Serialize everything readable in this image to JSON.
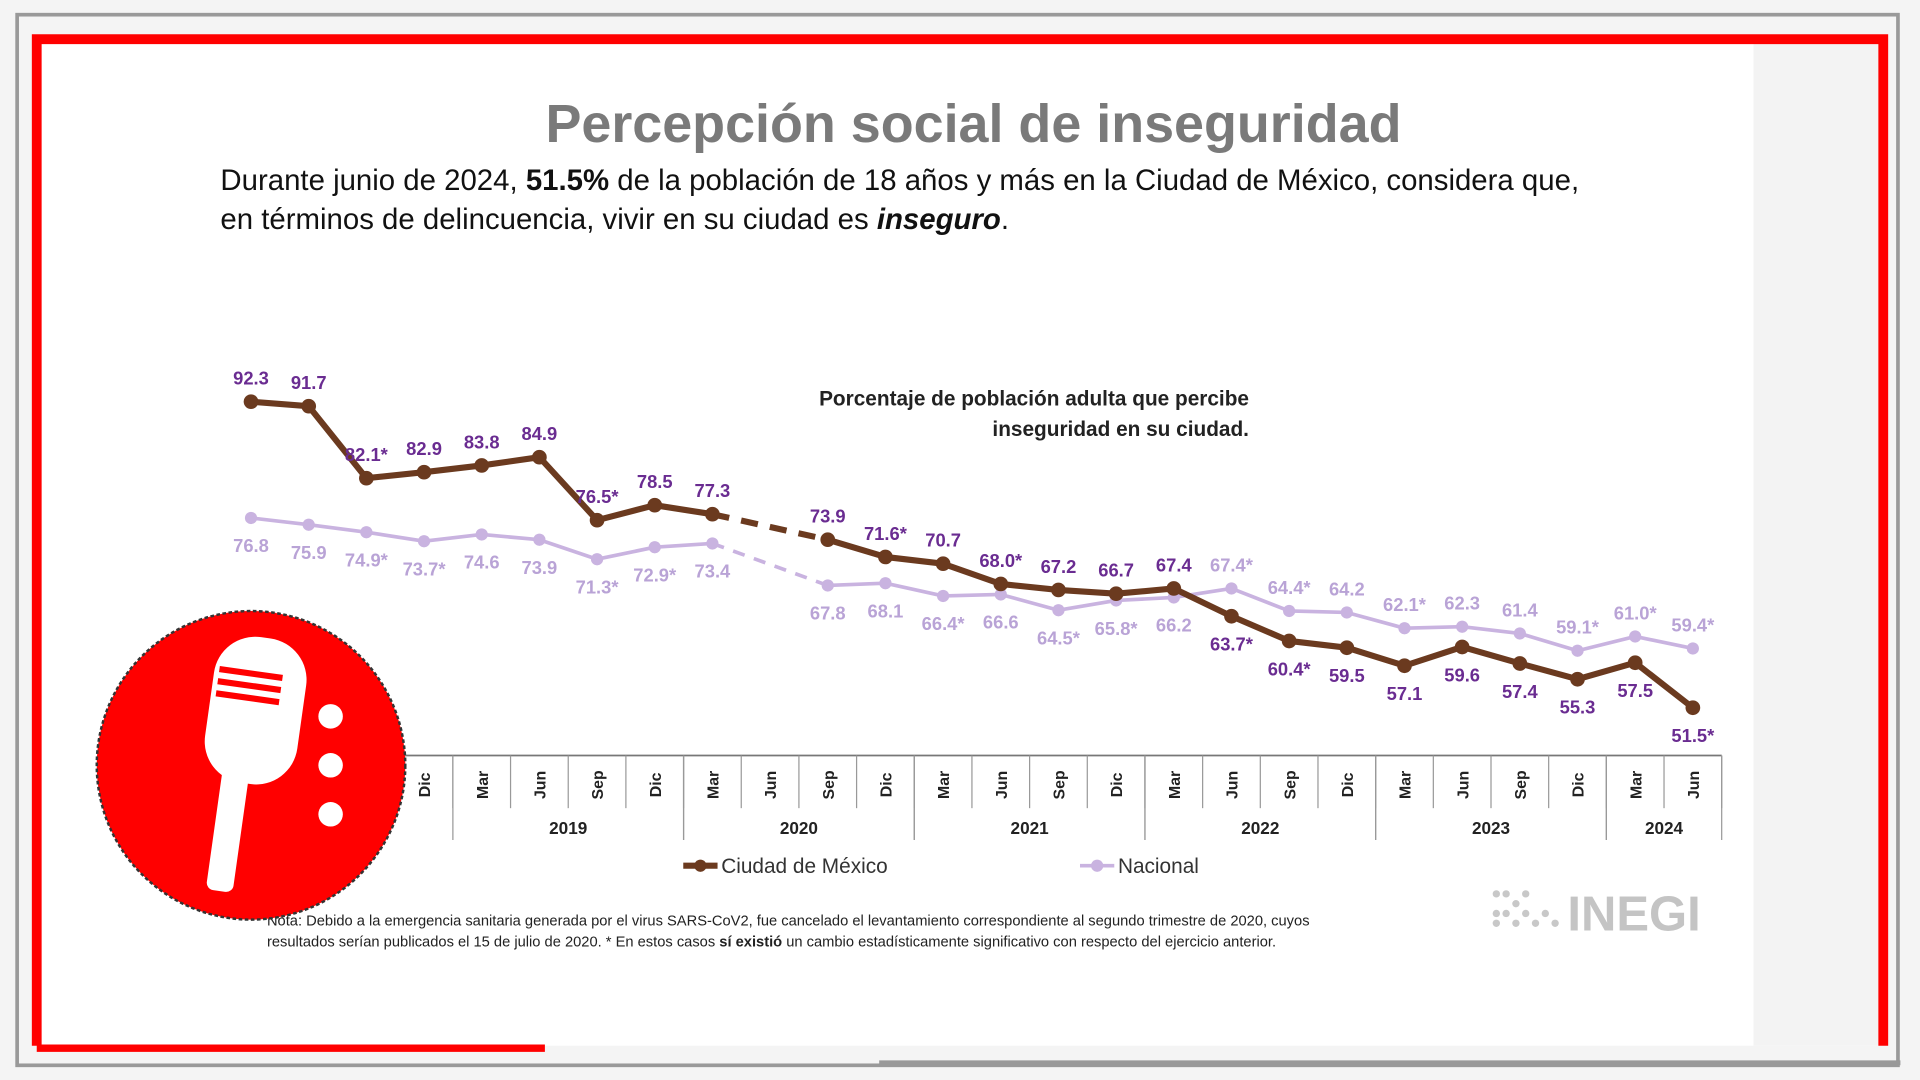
{
  "chart_data": {
    "type": "line",
    "title": "Percepción social de inseguridad",
    "subtitle": [
      "Durante junio de 2024, ",
      "51.5%",
      " de la población de 18 años y más en la Ciudad de México, considera que,",
      "en términos de delincuencia, vivir en su ciudad es ",
      "inseguro",
      "."
    ],
    "annotation": [
      "Porcentaje de población adulta que percibe",
      "inseguridad en su ciudad."
    ],
    "categories": [
      null,
      null,
      null,
      "Dic",
      "Mar",
      "Jun",
      "Sep",
      "Dic",
      "Mar",
      "Jun",
      "Sep",
      "Dic",
      "Mar",
      "Jun",
      "Sep",
      "Dic",
      "Mar",
      "Jun",
      "Sep",
      "Dic",
      "Mar",
      "Jun",
      "Sep",
      "Dic",
      "Mar",
      "Jun"
    ],
    "years": [
      "2019",
      "2020",
      "2021",
      "2022",
      "2023",
      "2024"
    ],
    "ylim": [
      45,
      95
    ],
    "series": [
      {
        "name": "Ciudad de México",
        "color": "#6b3a1f",
        "label_color": "#6a2c91",
        "values": [
          92.3,
          91.7,
          82.1,
          82.9,
          83.8,
          84.9,
          76.5,
          78.5,
          77.3,
          null,
          73.9,
          71.6,
          70.7,
          68.0,
          67.2,
          66.7,
          67.4,
          63.7,
          60.4,
          59.5,
          57.1,
          59.6,
          57.4,
          55.3,
          57.5,
          51.5
        ],
        "value_labels": [
          "92.3",
          "91.7",
          "82.1*",
          "82.9",
          "83.8",
          "84.9",
          "76.5*",
          "78.5",
          "77.3",
          null,
          "73.9",
          "71.6*",
          "70.7",
          "68.0*",
          "67.2",
          "66.7",
          "67.4",
          "63.7*",
          "60.4*",
          "59.5",
          "57.1",
          "59.6",
          "57.4",
          "55.3",
          "57.5",
          "51.5*"
        ]
      },
      {
        "name": "Nacional",
        "color": "#c9b3e0",
        "label_color": "#b9a3d6",
        "values": [
          76.8,
          75.9,
          74.9,
          73.7,
          74.6,
          73.9,
          71.3,
          72.9,
          73.4,
          null,
          67.8,
          68.1,
          66.4,
          66.6,
          64.5,
          65.8,
          66.2,
          67.4,
          64.4,
          64.2,
          62.1,
          62.3,
          61.4,
          59.1,
          61.0,
          59.4
        ],
        "value_labels": [
          "76.8",
          "75.9",
          "74.9*",
          "73.7*",
          "74.6",
          "73.9",
          "71.3*",
          "72.9*",
          "73.4",
          null,
          "67.8",
          "68.1",
          "66.4*",
          "66.6",
          "64.5*",
          "65.8*",
          "66.2",
          "67.4*",
          "64.4*",
          "64.2",
          "62.1*",
          "62.3",
          "61.4",
          "59.1*",
          "61.0*",
          "59.4*"
        ]
      }
    ],
    "note": [
      "Nota: Debido a la emergencia sanitaria generada por el virus SARS-CoV2, fue cancelado el levantamiento correspondiente al segundo trimestre de 2020, cuyos",
      "resultados serían publicados el 15 de julio de 2020. * En estos casos ",
      "sí existió",
      " un cambio estadísticamente significativo con respecto del ejercicio anterior."
    ],
    "logo": "INEGI"
  }
}
